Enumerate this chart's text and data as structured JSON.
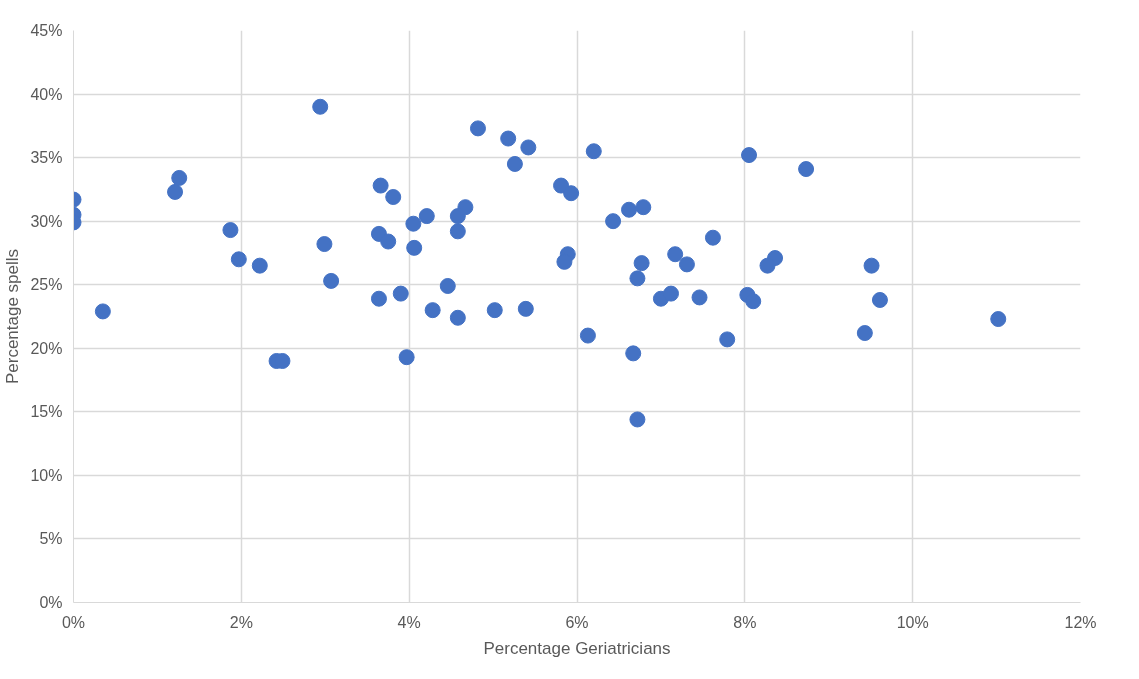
{
  "chart_data": {
    "type": "scatter",
    "xlabel": "Percentage Geriatricians",
    "ylabel": "Percentage spells",
    "x": [
      0,
      0,
      0,
      0.35,
      1.21,
      1.26,
      1.87,
      1.97,
      2.22,
      2.42,
      2.49,
      2.94,
      2.99,
      3.07,
      4.82,
      5.18,
      5.42,
      5.26,
      6.2,
      3.66,
      3.81,
      4.21,
      4.05,
      4.67,
      4.58,
      4.58,
      3.64,
      3.75,
      4.06,
      5.81,
      5.93,
      6.43,
      6.62,
      6.79,
      5.89,
      5.85,
      6.77,
      6.72,
      7.17,
      7.31,
      7.62,
      3.64,
      3.9,
      4.46,
      4.28,
      4.58,
      5.02,
      5.39,
      7.0,
      7.12,
      7.46,
      6.13,
      6.67,
      3.97,
      6.72,
      8.05,
      8.73,
      8.36,
      8.27,
      9.51,
      8.03,
      8.1,
      9.61,
      7.79,
      9.43,
      11.02
    ],
    "series": [
      {
        "color": "#4472c4",
        "values": [
          31.7,
          30.5,
          29.9,
          22.9,
          32.3,
          33.4,
          29.3,
          27.0,
          26.5,
          19.0,
          19.0,
          39.0,
          28.2,
          25.3,
          37.3,
          36.5,
          35.8,
          34.5,
          35.5,
          32.8,
          31.9,
          30.4,
          29.8,
          31.1,
          30.4,
          29.2,
          29.0,
          28.4,
          27.9,
          32.8,
          32.2,
          30.0,
          30.9,
          31.1,
          27.4,
          26.8,
          26.7,
          25.5,
          27.4,
          26.6,
          28.7,
          23.9,
          24.3,
          24.9,
          23.0,
          22.4,
          23.0,
          23.1,
          23.9,
          24.3,
          24.0,
          21.0,
          19.6,
          19.3,
          14.4,
          35.2,
          34.1,
          27.1,
          26.5,
          26.5,
          24.2,
          23.7,
          23.8,
          20.7,
          21.2,
          22.3
        ]
      }
    ],
    "xlim": [
      0,
      12
    ],
    "ylim": [
      0,
      45
    ],
    "xticks": [
      {
        "value": 0,
        "label": "0%"
      },
      {
        "value": 2,
        "label": "2%"
      },
      {
        "value": 4,
        "label": "4%"
      },
      {
        "value": 6,
        "label": "6%"
      },
      {
        "value": 8,
        "label": "8%"
      },
      {
        "value": 10,
        "label": "10%"
      },
      {
        "value": 12,
        "label": "12%"
      }
    ],
    "yticks": [
      {
        "value": 0,
        "label": "0%"
      },
      {
        "value": 5,
        "label": "5%"
      },
      {
        "value": 10,
        "label": "10%"
      },
      {
        "value": 15,
        "label": "15%"
      },
      {
        "value": 20,
        "label": "20%"
      },
      {
        "value": 25,
        "label": "25%"
      },
      {
        "value": 30,
        "label": "30%"
      },
      {
        "value": 35,
        "label": "35%"
      },
      {
        "value": 40,
        "label": "40%"
      },
      {
        "value": 45,
        "label": "45%"
      }
    ],
    "grid": true,
    "marker": "circle"
  }
}
